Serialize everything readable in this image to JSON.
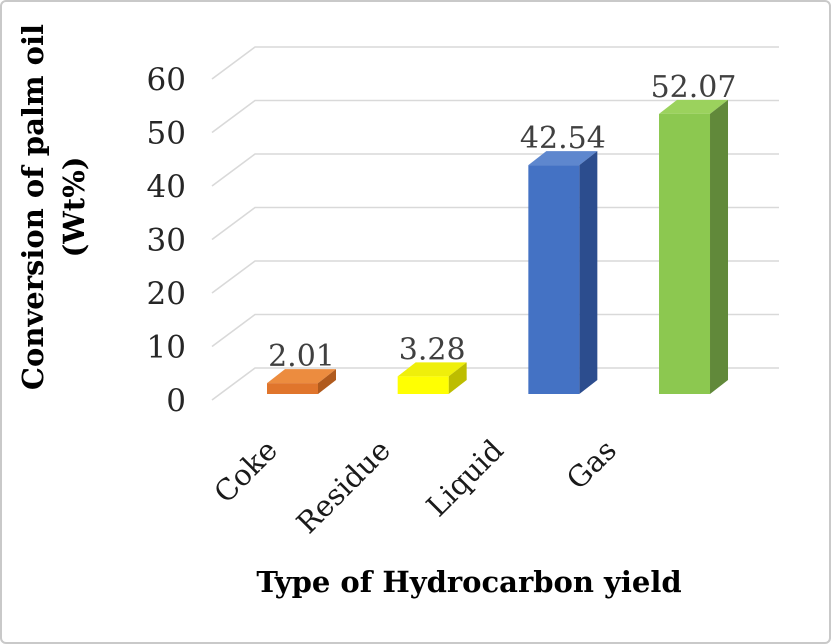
{
  "figure": {
    "background_color": "#ffffff",
    "border_color": "#c9c9c9"
  },
  "chart_data": {
    "type": "bar",
    "style": "3d-column",
    "categories": [
      "Coke",
      "Residue",
      "Liquid",
      "Gas"
    ],
    "values": [
      2.01,
      3.28,
      42.54,
      52.07
    ],
    "data_labels": [
      "2.01",
      "3.28",
      "42.54",
      "52.07"
    ],
    "xlabel": "Type of Hydrocarbon yield",
    "ylabel_line1": "Conversion of palm oil",
    "ylabel_line2": "(Wt%)",
    "ylim": [
      0,
      60
    ],
    "ytick_interval": 10,
    "ytick_labels": [
      "0",
      "10",
      "20",
      "30",
      "40",
      "50",
      "60"
    ],
    "grid": true,
    "legend": false,
    "gridline_color": "#d9d9d9",
    "tick_label_color": "#262626",
    "category_label_color": "#1a1a1a",
    "data_label_color": "#404040",
    "bar_colors": [
      {
        "name": "orange",
        "front": "#e0752c",
        "top": "#ec8c3f",
        "side": "#b05a1d"
      },
      {
        "name": "yellow",
        "front": "#ffff02",
        "top": "#efef0b",
        "side": "#bdbd00"
      },
      {
        "name": "blue",
        "front": "#4472c4",
        "top": "#5e87ce",
        "side": "#2c4d8e"
      },
      {
        "name": "green",
        "front": "#8cc850",
        "top": "#9bd25d",
        "side": "#61893a"
      }
    ]
  }
}
